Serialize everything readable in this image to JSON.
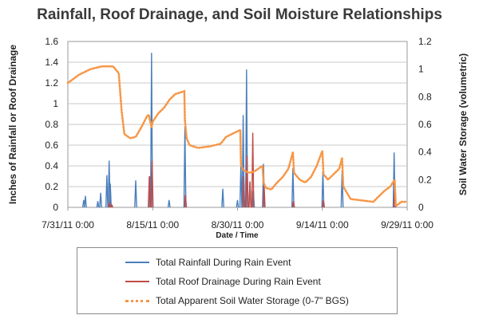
{
  "chart_data": {
    "type": "bar+line",
    "title": "Rainfall, Roof Drainage, and Soil Moisture Relationships",
    "xlabel": "Date / Time",
    "ylabel_left": "Inches of Rainfall or Roof Drainage",
    "ylabel_right": "Soil Water Storage (volumetric)",
    "ylim_left": [
      0,
      1.6
    ],
    "ylim_right": [
      0,
      1.2
    ],
    "yticks_left": [
      "0",
      "0.2",
      "0.4",
      "0.6",
      "0.8",
      "1",
      "1.2",
      "1.4",
      "1.6"
    ],
    "yticks_right": [
      "0",
      "0.2",
      "0.4",
      "0.6",
      "0.8",
      "1",
      "1.2"
    ],
    "xlim_days": [
      0,
      60
    ],
    "xticks": [
      {
        "day": 0,
        "label": "7/31/11 0:00"
      },
      {
        "day": 15,
        "label": "8/15/11 0:00"
      },
      {
        "day": 30,
        "label": "8/30/11 0:00"
      },
      {
        "day": 45,
        "label": "9/14/11 0:00"
      },
      {
        "day": 60,
        "label": "9/29/11 0:00"
      }
    ],
    "grid": "horizontal",
    "legend_position": "bottom",
    "series": [
      {
        "name": "Total Rainfall During Rain Event",
        "kind": "spikes",
        "axis": "left",
        "color": "#4a7ebb",
        "points": [
          [
            2.8,
            0.07
          ],
          [
            3.1,
            0.11
          ],
          [
            5.3,
            0.06
          ],
          [
            5.8,
            0.14
          ],
          [
            6.9,
            0.31
          ],
          [
            7.3,
            0.45
          ],
          [
            7.5,
            0.23
          ],
          [
            12.0,
            0.26
          ],
          [
            14.5,
            0.3
          ],
          [
            14.8,
            1.49
          ],
          [
            17.9,
            0.07
          ],
          [
            20.7,
            0.78
          ],
          [
            27.4,
            0.18
          ],
          [
            30.0,
            0.07
          ],
          [
            30.6,
            0.42
          ],
          [
            31.0,
            0.89
          ],
          [
            31.6,
            1.33
          ],
          [
            32.2,
            0.25
          ],
          [
            32.8,
            0.16
          ],
          [
            34.6,
            0.42
          ],
          [
            39.8,
            0.38
          ],
          [
            45.1,
            0.35
          ],
          [
            48.5,
            0.36
          ],
          [
            57.7,
            0.53
          ]
        ]
      },
      {
        "name": "Total Roof Drainage During Rain Event",
        "kind": "spikes",
        "axis": "left",
        "color": "#be4b48",
        "points": [
          [
            7.4,
            0.05
          ],
          [
            7.8,
            0.02
          ],
          [
            14.4,
            0.3
          ],
          [
            14.9,
            0.45
          ],
          [
            20.8,
            0.12
          ],
          [
            31.1,
            0.3
          ],
          [
            31.7,
            0.5
          ],
          [
            32.2,
            0.25
          ],
          [
            32.7,
            0.72
          ],
          [
            34.7,
            0.22
          ],
          [
            39.9,
            0.06
          ],
          [
            45.2,
            0.07
          ],
          [
            57.8,
            0.16
          ]
        ]
      },
      {
        "name": "Total Apparent Soil Water Storage (0-7\" BGS)",
        "kind": "dotted-line",
        "axis": "right",
        "color": "#f79646",
        "points": [
          [
            0,
            0.9
          ],
          [
            2,
            0.96
          ],
          [
            4,
            1.0
          ],
          [
            6,
            1.02
          ],
          [
            8,
            1.02
          ],
          [
            9,
            0.97
          ],
          [
            9.5,
            0.7
          ],
          [
            10,
            0.53
          ],
          [
            11,
            0.5
          ],
          [
            12,
            0.51
          ],
          [
            13,
            0.58
          ],
          [
            14,
            0.66
          ],
          [
            14.3,
            0.67
          ],
          [
            14.8,
            0.58
          ],
          [
            15,
            0.62
          ],
          [
            16,
            0.68
          ],
          [
            17,
            0.72
          ],
          [
            18,
            0.78
          ],
          [
            19,
            0.82
          ],
          [
            20.6,
            0.84
          ],
          [
            20.7,
            0.63
          ],
          [
            21,
            0.5
          ],
          [
            21.5,
            0.45
          ],
          [
            23,
            0.43
          ],
          [
            25,
            0.44
          ],
          [
            27,
            0.46
          ],
          [
            28,
            0.51
          ],
          [
            29,
            0.53
          ],
          [
            30.5,
            0.56
          ],
          [
            30.6,
            0.31
          ],
          [
            31,
            0.27
          ],
          [
            32,
            0.25
          ],
          [
            33,
            0.26
          ],
          [
            34.4,
            0.3
          ],
          [
            34.6,
            0.18
          ],
          [
            35,
            0.14
          ],
          [
            36,
            0.13
          ],
          [
            37,
            0.18
          ],
          [
            38,
            0.22
          ],
          [
            39,
            0.28
          ],
          [
            39.8,
            0.4
          ],
          [
            40,
            0.25
          ],
          [
            41,
            0.2
          ],
          [
            42,
            0.18
          ],
          [
            43,
            0.22
          ],
          [
            44,
            0.3
          ],
          [
            45.0,
            0.41
          ],
          [
            45.2,
            0.24
          ],
          [
            46,
            0.2
          ],
          [
            47,
            0.24
          ],
          [
            48,
            0.28
          ],
          [
            48.5,
            0.36
          ],
          [
            48.7,
            0.15
          ],
          [
            50,
            0.06
          ],
          [
            52,
            0.05
          ],
          [
            54,
            0.04
          ],
          [
            55,
            0.08
          ],
          [
            56,
            0.12
          ],
          [
            57,
            0.15
          ],
          [
            57.8,
            0.2
          ],
          [
            58,
            0.01
          ],
          [
            59,
            0.04
          ],
          [
            60,
            0.04
          ]
        ]
      }
    ]
  }
}
